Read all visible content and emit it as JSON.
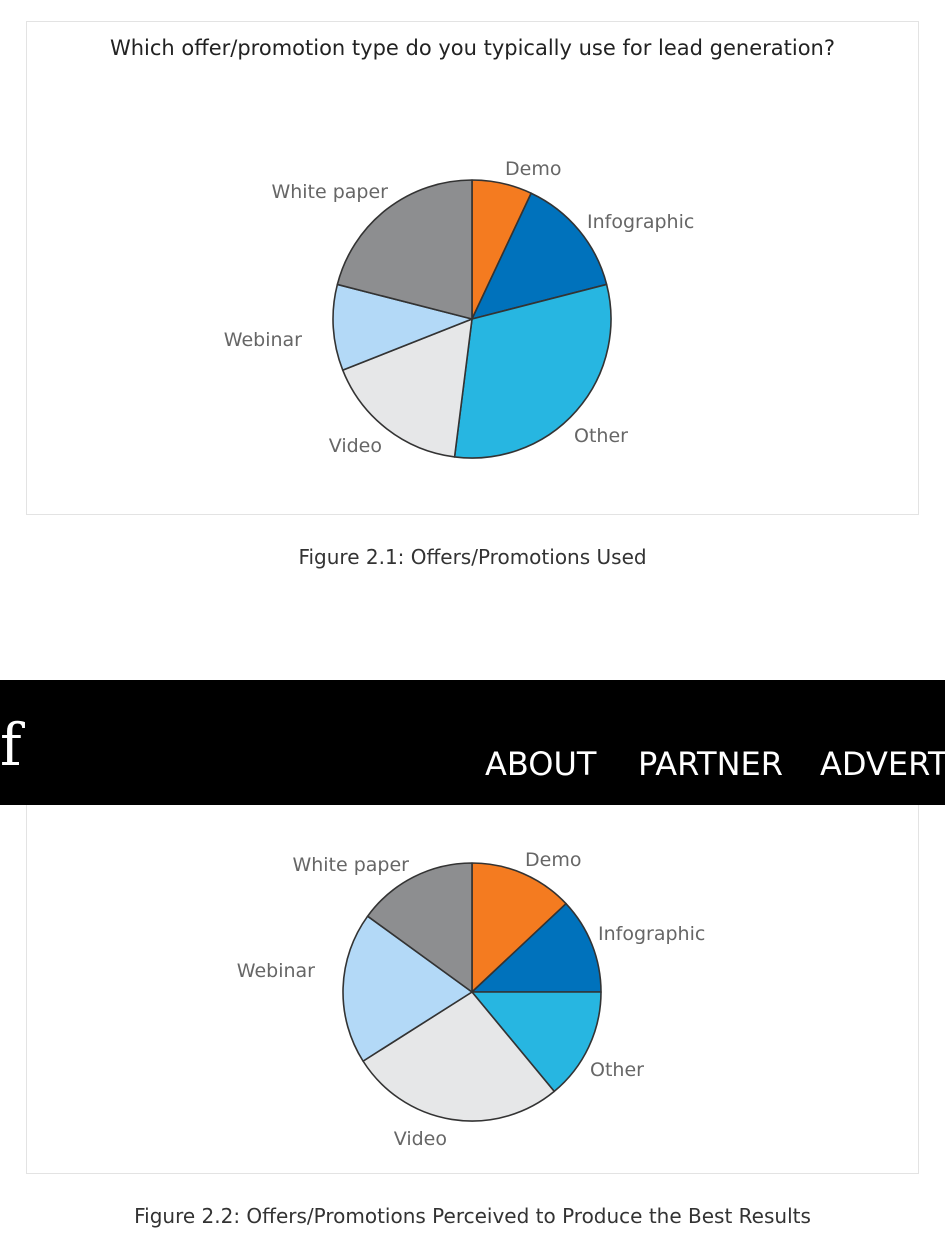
{
  "chart_data": [
    {
      "type": "pie",
      "title": "Which offer/promotion type do you typically use for lead generation?",
      "categories": [
        "Demo",
        "Infographic",
        "Other",
        "Video",
        "Webinar",
        "White paper"
      ],
      "values": [
        7,
        14,
        31,
        17,
        10,
        21
      ],
      "unit": "%",
      "colors": [
        "#F47B20",
        "#0072BC",
        "#27B6E1",
        "#E6E7E8",
        "#B3D9F7",
        "#8D8E90"
      ],
      "caption": "Figure 2.1: Offers/Promotions Used"
    },
    {
      "type": "pie",
      "title": "",
      "categories": [
        "Demo",
        "Infographic",
        "Other",
        "Video",
        "Webinar",
        "White paper"
      ],
      "values": [
        13,
        12,
        14,
        27,
        19,
        15
      ],
      "unit": "%",
      "colors": [
        "#F47B20",
        "#0072BC",
        "#27B6E1",
        "#E6E7E8",
        "#B3D9F7",
        "#8D8E90"
      ],
      "caption": "Figure 2.2: Offers/Promotions Perceived to Produce the Best Results"
    }
  ],
  "topbar": {
    "logo": "f",
    "nav": [
      "ABOUT",
      "PARTNER",
      "ADVERTI"
    ]
  }
}
